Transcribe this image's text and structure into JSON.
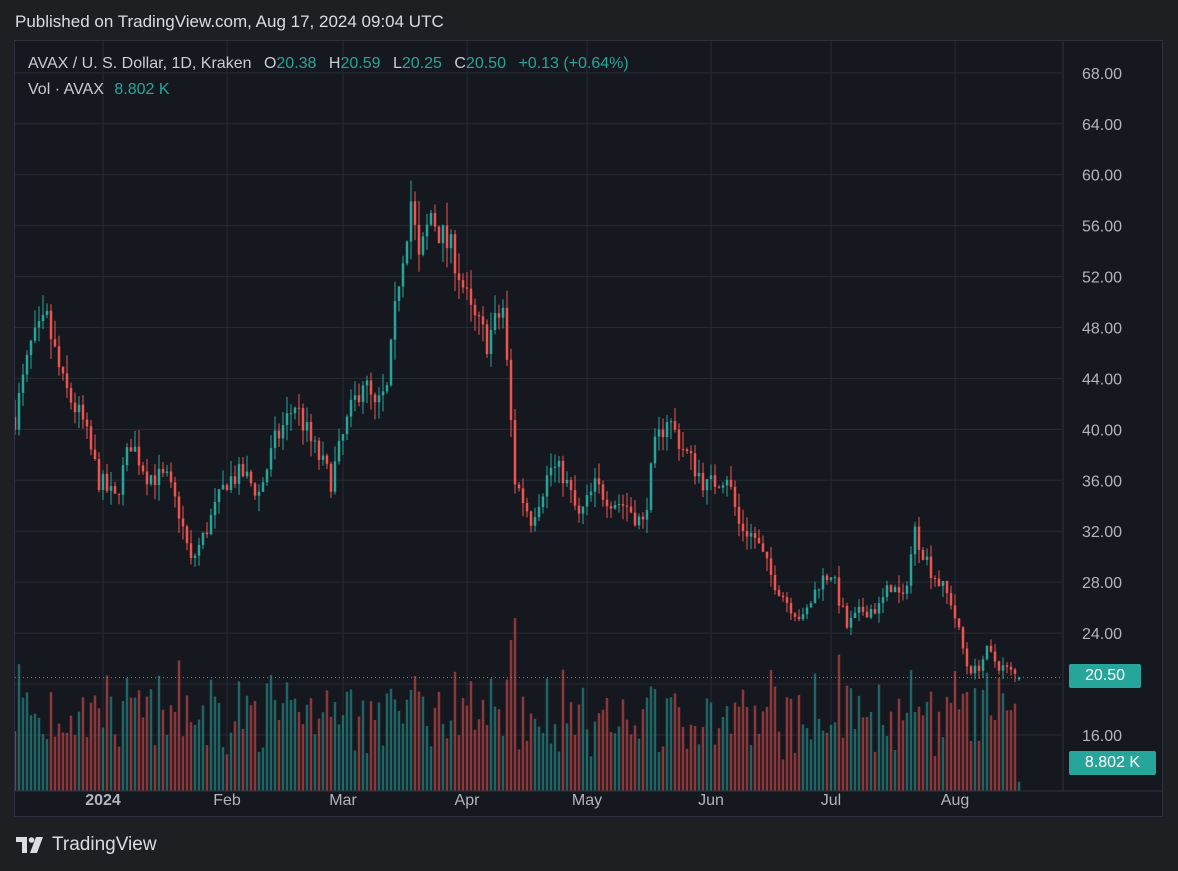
{
  "published": "Published on TradingView.com, Aug 17, 2024 09:04 UTC",
  "legend": {
    "symbol": "AVAX / U. S. Dollar, 1D, Kraken",
    "o_label": "O",
    "o_value": "20.38",
    "h_label": "H",
    "h_value": "20.59",
    "l_label": "L",
    "l_value": "20.25",
    "c_label": "C",
    "c_value": "20.50",
    "change": "+0.13 (+0.64%)",
    "vol_label": "Vol · AVAX",
    "vol_value": "8.802 K"
  },
  "price_badge": "20.50",
  "volume_badge": "8.802 K",
  "brand": "TradingView",
  "colors": {
    "up": "#26a69a",
    "down": "#ef5350",
    "background": "#161820",
    "grid": "#262a35",
    "axis_text": "#b2b5be"
  },
  "chart_data": {
    "type": "candlestick",
    "y_axis": {
      "ticks": [
        16,
        20,
        24,
        28,
        32,
        36,
        40,
        44,
        48,
        52,
        56,
        60,
        64,
        68
      ],
      "tick_labels": [
        "16.00",
        "24.00",
        "28.00",
        "32.00",
        "36.00",
        "40.00",
        "44.00",
        "48.00",
        "52.00",
        "56.00",
        "60.00",
        "64.00",
        "68.00"
      ],
      "range": [
        11.6,
        70.5
      ]
    },
    "x_axis": {
      "range": [
        "2023-12-10",
        "2024-08-28"
      ],
      "ticks": [
        {
          "date": "2024-01-01",
          "label": "2024"
        },
        {
          "date": "2024-02-01",
          "label": "Feb"
        },
        {
          "date": "2024-03-01",
          "label": "Mar"
        },
        {
          "date": "2024-04-01",
          "label": "Apr"
        },
        {
          "date": "2024-05-01",
          "label": "May"
        },
        {
          "date": "2024-06-01",
          "label": "Jun"
        },
        {
          "date": "2024-07-01",
          "label": "Jul"
        },
        {
          "date": "2024-08-01",
          "label": "Aug"
        }
      ]
    },
    "last_price": 20.5,
    "start_date": "2023-12-10",
    "anchors": [
      [
        "2023-12-10",
        41.0
      ],
      [
        "2023-12-14",
        46.5
      ],
      [
        "2023-12-18",
        48.5
      ],
      [
        "2023-12-22",
        43.5
      ],
      [
        "2023-12-27",
        40.5
      ],
      [
        "2023-12-31",
        36.0
      ],
      [
        "2024-01-04",
        34.5
      ],
      [
        "2024-01-08",
        39.0
      ],
      [
        "2024-01-12",
        36.5
      ],
      [
        "2024-01-17",
        36.0
      ],
      [
        "2024-01-20",
        33.5
      ],
      [
        "2024-01-23",
        29.5
      ],
      [
        "2024-01-26",
        31.5
      ],
      [
        "2024-02-01",
        36.0
      ],
      [
        "2024-02-05",
        36.5
      ],
      [
        "2024-02-09",
        35.0
      ],
      [
        "2024-02-13",
        39.0
      ],
      [
        "2024-02-18",
        42.0
      ],
      [
        "2024-02-22",
        39.0
      ],
      [
        "2024-02-27",
        36.0
      ],
      [
        "2024-03-02",
        40.5
      ],
      [
        "2024-03-06",
        44.0
      ],
      [
        "2024-03-09",
        41.5
      ],
      [
        "2024-03-12",
        43.0
      ],
      [
        "2024-03-15",
        52.0
      ],
      [
        "2024-03-18",
        58.0
      ],
      [
        "2024-03-20",
        53.0
      ],
      [
        "2024-03-23",
        57.0
      ],
      [
        "2024-03-26",
        55.0
      ],
      [
        "2024-03-29",
        53.5
      ],
      [
        "2024-04-02",
        49.0
      ],
      [
        "2024-04-06",
        47.0
      ],
      [
        "2024-04-10",
        49.5
      ],
      [
        "2024-04-13",
        36.0
      ],
      [
        "2024-04-17",
        33.0
      ],
      [
        "2024-04-22",
        37.0
      ],
      [
        "2024-04-25",
        36.5
      ],
      [
        "2024-04-29",
        33.0
      ],
      [
        "2024-05-03",
        35.5
      ],
      [
        "2024-05-07",
        34.5
      ],
      [
        "2024-05-11",
        34.0
      ],
      [
        "2024-05-15",
        32.5
      ],
      [
        "2024-05-18",
        38.5
      ],
      [
        "2024-05-21",
        41.0
      ],
      [
        "2024-05-25",
        38.5
      ],
      [
        "2024-05-31",
        35.5
      ],
      [
        "2024-06-05",
        36.5
      ],
      [
        "2024-06-08",
        32.5
      ],
      [
        "2024-06-12",
        31.5
      ],
      [
        "2024-06-16",
        28.5
      ],
      [
        "2024-06-20",
        26.5
      ],
      [
        "2024-06-24",
        25.0
      ],
      [
        "2024-06-28",
        28.0
      ],
      [
        "2024-07-01",
        28.8
      ],
      [
        "2024-07-05",
        24.5
      ],
      [
        "2024-07-09",
        25.8
      ],
      [
        "2024-07-13",
        26.0
      ],
      [
        "2024-07-16",
        27.8
      ],
      [
        "2024-07-19",
        26.5
      ],
      [
        "2024-07-22",
        32.0
      ],
      [
        "2024-07-26",
        29.0
      ],
      [
        "2024-07-31",
        26.5
      ],
      [
        "2024-08-04",
        21.5
      ],
      [
        "2024-08-06",
        21.0
      ],
      [
        "2024-08-09",
        22.5
      ],
      [
        "2024-08-12",
        21.5
      ],
      [
        "2024-08-17",
        20.5
      ]
    ],
    "volume_scale_note": "volume bars in relative units (0-1)"
  }
}
